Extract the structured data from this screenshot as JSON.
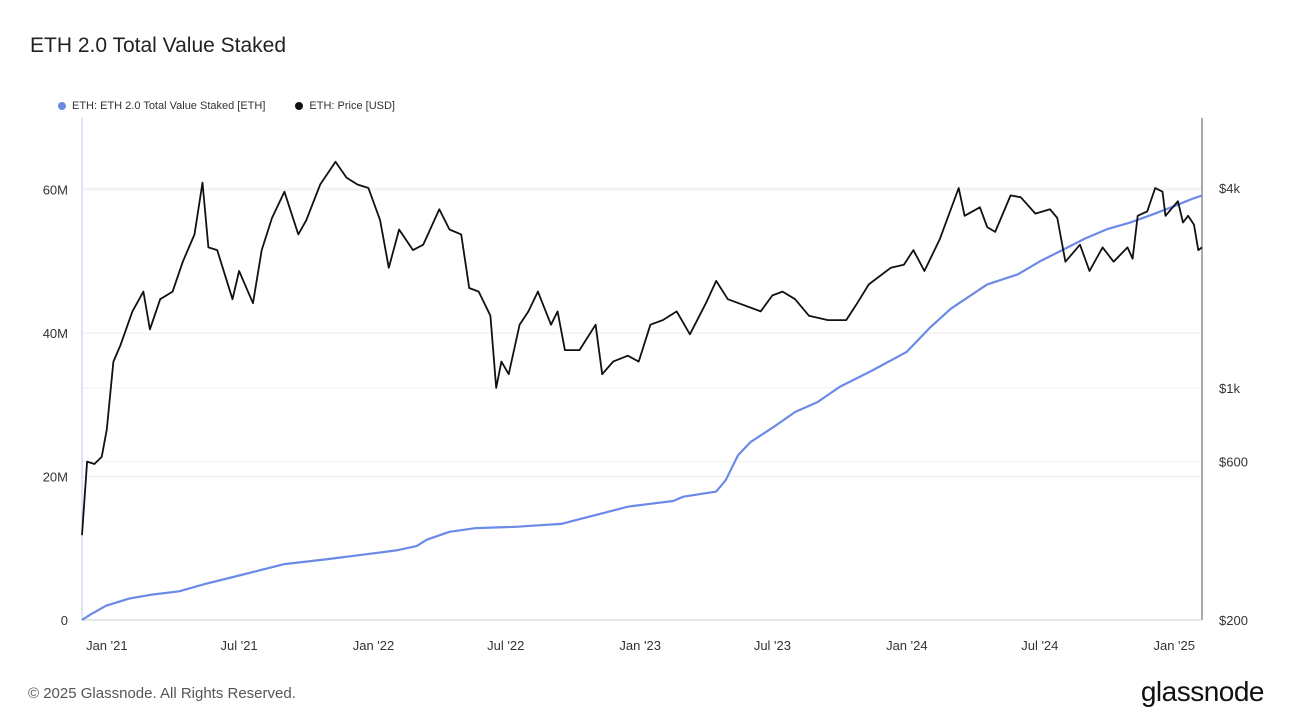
{
  "header": {
    "title": "ETH 2.0 Total Value Staked"
  },
  "legend": [
    {
      "label": "ETH: ETH 2.0 Total Value Staked [ETH]",
      "color": "#6b8ae8"
    },
    {
      "label": "ETH: Price [USD]",
      "color": "#111111"
    }
  ],
  "footer": {
    "copyright": "© 2025 Glassnode. All Rights Reserved.",
    "brand": "glassnode"
  },
  "chart_data": {
    "type": "line",
    "x_ticks": [
      "Jan '21",
      "Jul '21",
      "Jan '22",
      "Jul '22",
      "Jan '23",
      "Jul '23",
      "Jan '24",
      "Jul '24",
      "Jan '25"
    ],
    "y_left_ticks": [
      "0",
      "20M",
      "40M",
      "60M"
    ],
    "y_right_ticks": [
      "$200",
      "$600",
      "$1k",
      "$4k"
    ],
    "y_left_range": [
      0,
      70000000
    ],
    "y_right_scale": "log",
    "grid": true,
    "legend_position": "top-left",
    "series": [
      {
        "name": "ETH: ETH 2.0 Total Value Staked [ETH]",
        "axis": "left",
        "color": "#6b8ae8",
        "points": [
          [
            "2020-11-28",
            0
          ],
          [
            "2020-12-10",
            800000
          ],
          [
            "2020-12-31",
            2000000
          ],
          [
            "2021-02-01",
            3000000
          ],
          [
            "2021-03-01",
            3500000
          ],
          [
            "2021-04-10",
            4000000
          ],
          [
            "2021-05-15",
            5000000
          ],
          [
            "2021-07-01",
            6200000
          ],
          [
            "2021-08-01",
            7000000
          ],
          [
            "2021-09-01",
            7800000
          ],
          [
            "2021-11-01",
            8500000
          ],
          [
            "2022-01-01",
            9300000
          ],
          [
            "2022-02-01",
            9700000
          ],
          [
            "2022-03-01",
            10300000
          ],
          [
            "2022-03-15",
            11200000
          ],
          [
            "2022-04-15",
            12300000
          ],
          [
            "2022-05-20",
            12800000
          ],
          [
            "2022-06-15",
            12900000
          ],
          [
            "2022-07-15",
            13000000
          ],
          [
            "2022-08-15",
            13200000
          ],
          [
            "2022-09-15",
            13400000
          ],
          [
            "2022-10-15",
            14200000
          ],
          [
            "2022-11-15",
            15000000
          ],
          [
            "2022-12-15",
            15800000
          ],
          [
            "2023-01-15",
            16200000
          ],
          [
            "2023-02-15",
            16600000
          ],
          [
            "2023-03-01",
            17200000
          ],
          [
            "2023-04-15",
            17900000
          ],
          [
            "2023-04-28",
            19500000
          ],
          [
            "2023-05-15",
            23000000
          ],
          [
            "2023-06-01",
            24800000
          ],
          [
            "2023-07-01",
            26800000
          ],
          [
            "2023-08-01",
            29000000
          ],
          [
            "2023-09-01",
            30400000
          ],
          [
            "2023-10-01",
            32500000
          ],
          [
            "2023-11-15",
            34800000
          ],
          [
            "2024-01-01",
            37400000
          ],
          [
            "2024-02-01",
            40700000
          ],
          [
            "2024-03-01",
            43400000
          ],
          [
            "2024-04-01",
            45500000
          ],
          [
            "2024-04-20",
            46800000
          ],
          [
            "2024-06-01",
            48200000
          ],
          [
            "2024-07-01",
            50000000
          ],
          [
            "2024-08-01",
            51600000
          ],
          [
            "2024-09-01",
            53200000
          ],
          [
            "2024-10-01",
            54500000
          ],
          [
            "2024-11-01",
            55400000
          ],
          [
            "2024-12-01",
            56500000
          ],
          [
            "2025-01-01",
            57700000
          ],
          [
            "2025-01-25",
            58700000
          ],
          [
            "2025-02-08",
            59200000
          ]
        ]
      },
      {
        "name": "ETH: Price [USD]",
        "axis": "right",
        "color": "#111111",
        "points": [
          [
            "2020-11-28",
            360
          ],
          [
            "2020-12-05",
            600
          ],
          [
            "2020-12-15",
            590
          ],
          [
            "2020-12-25",
            620
          ],
          [
            "2021-01-01",
            750
          ],
          [
            "2021-01-10",
            1200
          ],
          [
            "2021-01-20",
            1350
          ],
          [
            "2021-02-05",
            1700
          ],
          [
            "2021-02-20",
            1950
          ],
          [
            "2021-03-01",
            1500
          ],
          [
            "2021-03-15",
            1850
          ],
          [
            "2021-04-01",
            1950
          ],
          [
            "2021-04-15",
            2400
          ],
          [
            "2021-05-01",
            2900
          ],
          [
            "2021-05-12",
            4150
          ],
          [
            "2021-05-20",
            2650
          ],
          [
            "2021-06-01",
            2600
          ],
          [
            "2021-06-22",
            1850
          ],
          [
            "2021-07-01",
            2250
          ],
          [
            "2021-07-20",
            1800
          ],
          [
            "2021-08-01",
            2600
          ],
          [
            "2021-08-15",
            3250
          ],
          [
            "2021-09-01",
            3900
          ],
          [
            "2021-09-20",
            2900
          ],
          [
            "2021-10-01",
            3200
          ],
          [
            "2021-10-20",
            4100
          ],
          [
            "2021-11-10",
            4800
          ],
          [
            "2021-11-25",
            4300
          ],
          [
            "2021-12-10",
            4100
          ],
          [
            "2021-12-25",
            4000
          ],
          [
            "2022-01-10",
            3200
          ],
          [
            "2022-01-22",
            2300
          ],
          [
            "2022-02-05",
            3000
          ],
          [
            "2022-02-24",
            2600
          ],
          [
            "2022-03-10",
            2700
          ],
          [
            "2022-04-01",
            3450
          ],
          [
            "2022-04-15",
            3000
          ],
          [
            "2022-05-01",
            2900
          ],
          [
            "2022-05-12",
            2000
          ],
          [
            "2022-05-25",
            1950
          ],
          [
            "2022-06-10",
            1650
          ],
          [
            "2022-06-18",
            1000
          ],
          [
            "2022-06-25",
            1200
          ],
          [
            "2022-07-05",
            1100
          ],
          [
            "2022-07-20",
            1550
          ],
          [
            "2022-08-01",
            1700
          ],
          [
            "2022-08-14",
            1950
          ],
          [
            "2022-09-01",
            1550
          ],
          [
            "2022-09-10",
            1700
          ],
          [
            "2022-09-20",
            1300
          ],
          [
            "2022-10-10",
            1300
          ],
          [
            "2022-11-01",
            1550
          ],
          [
            "2022-11-10",
            1100
          ],
          [
            "2022-11-25",
            1200
          ],
          [
            "2022-12-15",
            1250
          ],
          [
            "2022-12-30",
            1200
          ],
          [
            "2023-01-15",
            1550
          ],
          [
            "2023-02-01",
            1600
          ],
          [
            "2023-02-20",
            1700
          ],
          [
            "2023-03-10",
            1450
          ],
          [
            "2023-04-01",
            1800
          ],
          [
            "2023-04-15",
            2100
          ],
          [
            "2023-05-01",
            1850
          ],
          [
            "2023-06-15",
            1700
          ],
          [
            "2023-07-01",
            1900
          ],
          [
            "2023-07-15",
            1950
          ],
          [
            "2023-08-01",
            1850
          ],
          [
            "2023-08-20",
            1650
          ],
          [
            "2023-09-15",
            1600
          ],
          [
            "2023-10-10",
            1600
          ],
          [
            "2023-10-25",
            1800
          ],
          [
            "2023-11-10",
            2050
          ],
          [
            "2023-12-10",
            2300
          ],
          [
            "2023-12-28",
            2350
          ],
          [
            "2024-01-10",
            2600
          ],
          [
            "2024-01-25",
            2250
          ],
          [
            "2024-02-15",
            2800
          ],
          [
            "2024-03-12",
            4000
          ],
          [
            "2024-03-20",
            3300
          ],
          [
            "2024-04-10",
            3500
          ],
          [
            "2024-04-20",
            3050
          ],
          [
            "2024-05-01",
            2950
          ],
          [
            "2024-05-22",
            3800
          ],
          [
            "2024-06-05",
            3750
          ],
          [
            "2024-06-25",
            3350
          ],
          [
            "2024-07-15",
            3450
          ],
          [
            "2024-07-25",
            3250
          ],
          [
            "2024-08-05",
            2400
          ],
          [
            "2024-08-25",
            2700
          ],
          [
            "2024-09-07",
            2250
          ],
          [
            "2024-09-25",
            2650
          ],
          [
            "2024-10-10",
            2400
          ],
          [
            "2024-10-29",
            2650
          ],
          [
            "2024-11-05",
            2450
          ],
          [
            "2024-11-12",
            3300
          ],
          [
            "2024-11-25",
            3400
          ],
          [
            "2024-12-06",
            4000
          ],
          [
            "2024-12-16",
            3900
          ],
          [
            "2024-12-20",
            3300
          ],
          [
            "2025-01-06",
            3650
          ],
          [
            "2025-01-13",
            3150
          ],
          [
            "2025-01-20",
            3300
          ],
          [
            "2025-01-28",
            3100
          ],
          [
            "2025-02-03",
            2600
          ],
          [
            "2025-02-08",
            2650
          ]
        ]
      }
    ]
  }
}
